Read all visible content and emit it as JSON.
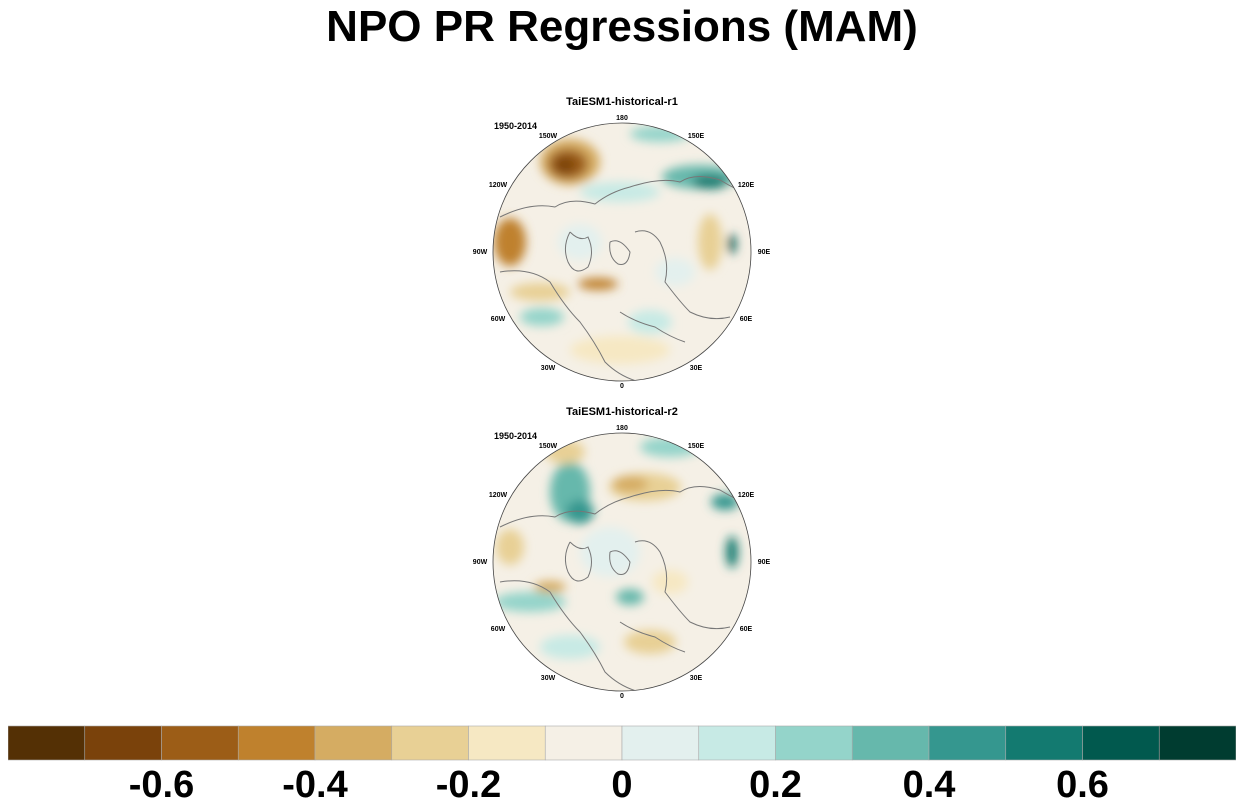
{
  "title": "NPO PR Regressions (MAM)",
  "panels": [
    {
      "title": "TaiESM1-historical-r1",
      "period": "1950-2014"
    },
    {
      "title": "TaiESM1-historical-r2",
      "period": "1950-2014"
    }
  ],
  "longitude_labels": [
    "180",
    "150E",
    "120E",
    "90E",
    "60E",
    "30E",
    "0",
    "30W",
    "60W",
    "90W",
    "120W",
    "150W"
  ],
  "colorbar": {
    "colors": [
      "#543005",
      "#7a420b",
      "#9c5d17",
      "#bf812d",
      "#d5ac62",
      "#e8d095",
      "#f6e8c3",
      "#f5f0e6",
      "#e3f0ee",
      "#c7eae5",
      "#94d4ca",
      "#66b8ac",
      "#35978f",
      "#137a70",
      "#01594e",
      "#003c30"
    ],
    "tick_values": [
      "-0.6",
      "-0.4",
      "-0.2",
      "0",
      "0.2",
      "0.4",
      "0.6"
    ],
    "range": [
      -0.8,
      0.8
    ],
    "step": 0.1
  },
  "colors": {
    "coastline": "#777777",
    "map_background": "#f5f0e6"
  }
}
